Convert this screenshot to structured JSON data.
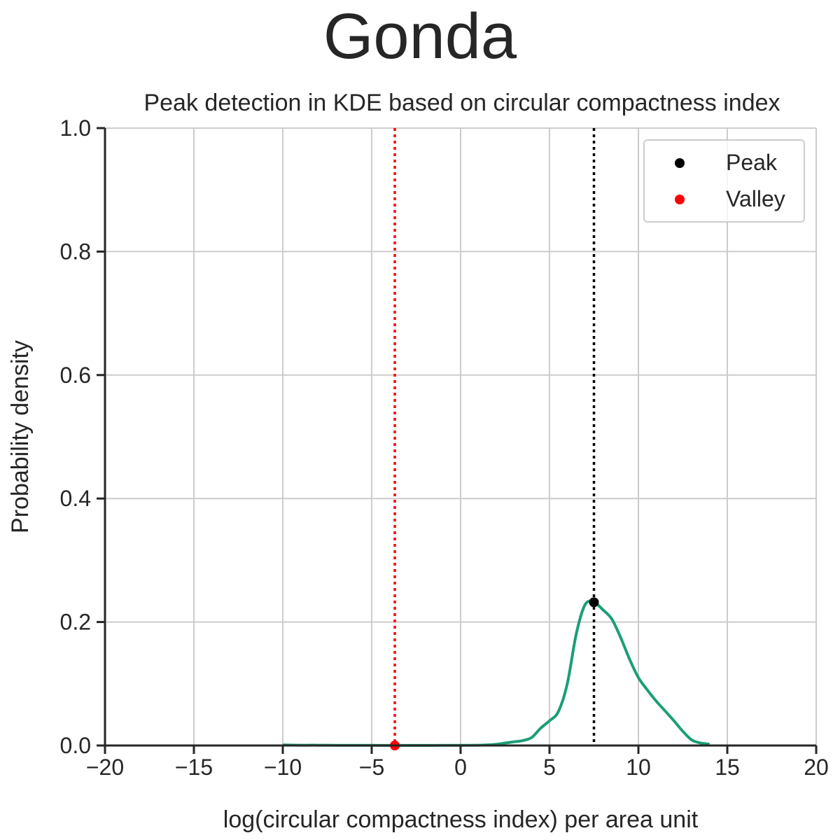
{
  "figure": {
    "title": "Gonda"
  },
  "chart_data": {
    "type": "line",
    "title": "Peak detection in KDE based on circular compactness index",
    "xlabel": "log(circular compactness index) per area unit",
    "ylabel": "Probability density",
    "xlim": [
      -20,
      20
    ],
    "ylim": [
      0,
      1.0
    ],
    "xticks": [
      -20,
      -15,
      -10,
      -5,
      0,
      5,
      10,
      15,
      20
    ],
    "xtick_labels": [
      "−20",
      "−15",
      "−10",
      "−5",
      "0",
      "5",
      "10",
      "15",
      "20"
    ],
    "yticks": [
      0.0,
      0.2,
      0.4,
      0.6,
      0.8,
      1.0
    ],
    "ytick_labels": [
      "0.0",
      "0.2",
      "0.4",
      "0.6",
      "0.8",
      "1.0"
    ],
    "grid": true,
    "legend": {
      "placement": "top-right",
      "entries": [
        {
          "label": "Peak",
          "color": "#000000"
        },
        {
          "label": "Valley",
          "color": "#ff0000"
        }
      ]
    },
    "series": [
      {
        "color": "#1a9e78",
        "x": [
          -10,
          -9,
          -8,
          -7,
          -6,
          -5,
          -4,
          -3,
          -2,
          -1,
          0,
          1,
          1.5,
          2,
          2.5,
          3,
          3.5,
          4,
          4.5,
          5,
          5.5,
          6,
          6.5,
          7,
          7.5,
          8,
          8.5,
          9,
          9.5,
          10,
          10.5,
          11,
          11.5,
          12,
          12.5,
          13,
          13.5,
          14
        ],
        "y": [
          0.001,
          0.0005,
          0.0005,
          0.0003,
          0.0003,
          0.0002,
          0.0001,
          0.0001,
          0.0001,
          0.0002,
          0.0003,
          0.0005,
          0.001,
          0.002,
          0.004,
          0.006,
          0.008,
          0.013,
          0.028,
          0.04,
          0.055,
          0.1,
          0.18,
          0.228,
          0.232,
          0.22,
          0.205,
          0.175,
          0.14,
          0.11,
          0.09,
          0.072,
          0.056,
          0.04,
          0.023,
          0.009,
          0.004,
          0.002
        ]
      }
    ],
    "peaks": [
      {
        "x": 7.5,
        "y": 0.232,
        "color": "#000000"
      }
    ],
    "valleys": [
      {
        "x": -3.7,
        "y": 0.0,
        "color": "#ff0000"
      }
    ]
  }
}
